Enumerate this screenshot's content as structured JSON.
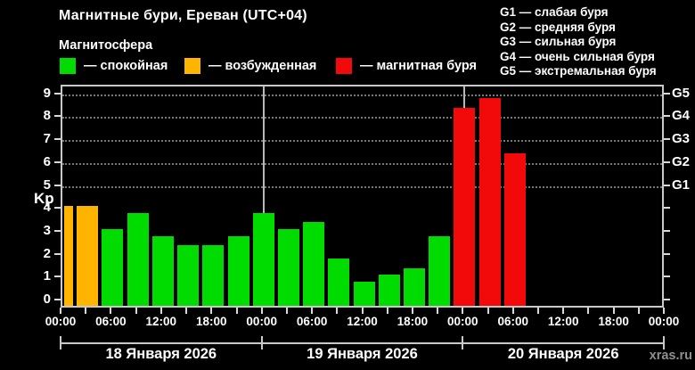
{
  "header": {
    "title": "Магнитные бури, Ереван (UTC+04)",
    "subtitle": "Магнитосфера",
    "legend": [
      {
        "key": "quiet",
        "label": "— спокойная"
      },
      {
        "key": "excited",
        "label": "— возбужденная"
      },
      {
        "key": "storm",
        "label": "— магнитная буря"
      }
    ],
    "g_scale": [
      "G1 — слабая буря",
      "G2 — средняя буря",
      "G3 — сильная буря",
      "G4 — очень сильная буря",
      "G5 — экстремальная буря"
    ]
  },
  "chart_data": {
    "type": "bar",
    "title": "Магнитные бури, Ереван (UTC+04)",
    "ylabel": "Kp",
    "ylim": [
      0,
      9
    ],
    "yticks": [
      0,
      1,
      2,
      3,
      4,
      5,
      6,
      7,
      8,
      9
    ],
    "grid": "horizontal dotted lines only at Kp 5–9 (storm levels)",
    "legend_position": "top",
    "right_axis": [
      {
        "kp": 5,
        "label": "G1"
      },
      {
        "kp": 6,
        "label": "G2"
      },
      {
        "kp": 7,
        "label": "G3"
      },
      {
        "kp": 8,
        "label": "G4"
      },
      {
        "kp": 9,
        "label": "G5"
      }
    ],
    "x_time_labels": [
      "00:00",
      "06:00",
      "12:00",
      "18:00",
      "00:00",
      "06:00",
      "12:00",
      "18:00",
      "00:00",
      "06:00",
      "12:00",
      "18:00",
      "00:00"
    ],
    "hours_span": 72,
    "bar_interval_hours": 3,
    "days": [
      {
        "date": "18 Января 2026",
        "start_hour": 0
      },
      {
        "date": "19 Января 2026",
        "start_hour": 24
      },
      {
        "date": "20 Января 2026",
        "start_hour": 48
      }
    ],
    "bars": [
      {
        "hour": 0,
        "kp": 4.0,
        "state": "excited",
        "clipped": true
      },
      {
        "hour": 3,
        "kp": 4.0,
        "state": "excited"
      },
      {
        "hour": 6,
        "kp": 3.0,
        "state": "quiet"
      },
      {
        "hour": 9,
        "kp": 3.7,
        "state": "quiet"
      },
      {
        "hour": 12,
        "kp": 2.7,
        "state": "quiet"
      },
      {
        "hour": 15,
        "kp": 2.3,
        "state": "quiet"
      },
      {
        "hour": 18,
        "kp": 2.3,
        "state": "quiet"
      },
      {
        "hour": 21,
        "kp": 2.7,
        "state": "quiet"
      },
      {
        "hour": 24,
        "kp": 3.7,
        "state": "quiet"
      },
      {
        "hour": 27,
        "kp": 3.0,
        "state": "quiet"
      },
      {
        "hour": 30,
        "kp": 3.3,
        "state": "quiet"
      },
      {
        "hour": 33,
        "kp": 1.7,
        "state": "quiet"
      },
      {
        "hour": 36,
        "kp": 0.7,
        "state": "quiet"
      },
      {
        "hour": 39,
        "kp": 1.0,
        "state": "quiet"
      },
      {
        "hour": 42,
        "kp": 1.3,
        "state": "quiet"
      },
      {
        "hour": 45,
        "kp": 2.7,
        "state": "quiet"
      },
      {
        "hour": 48,
        "kp": 8.3,
        "state": "storm"
      },
      {
        "hour": 51,
        "kp": 8.7,
        "state": "storm"
      },
      {
        "hour": 54,
        "kp": 6.3,
        "state": "storm"
      }
    ],
    "state_colors": {
      "quiet": "#00dc00",
      "excited": "#ffb400",
      "storm": "#f20a0a"
    }
  },
  "footer": {
    "watermark": "xras.ru"
  }
}
